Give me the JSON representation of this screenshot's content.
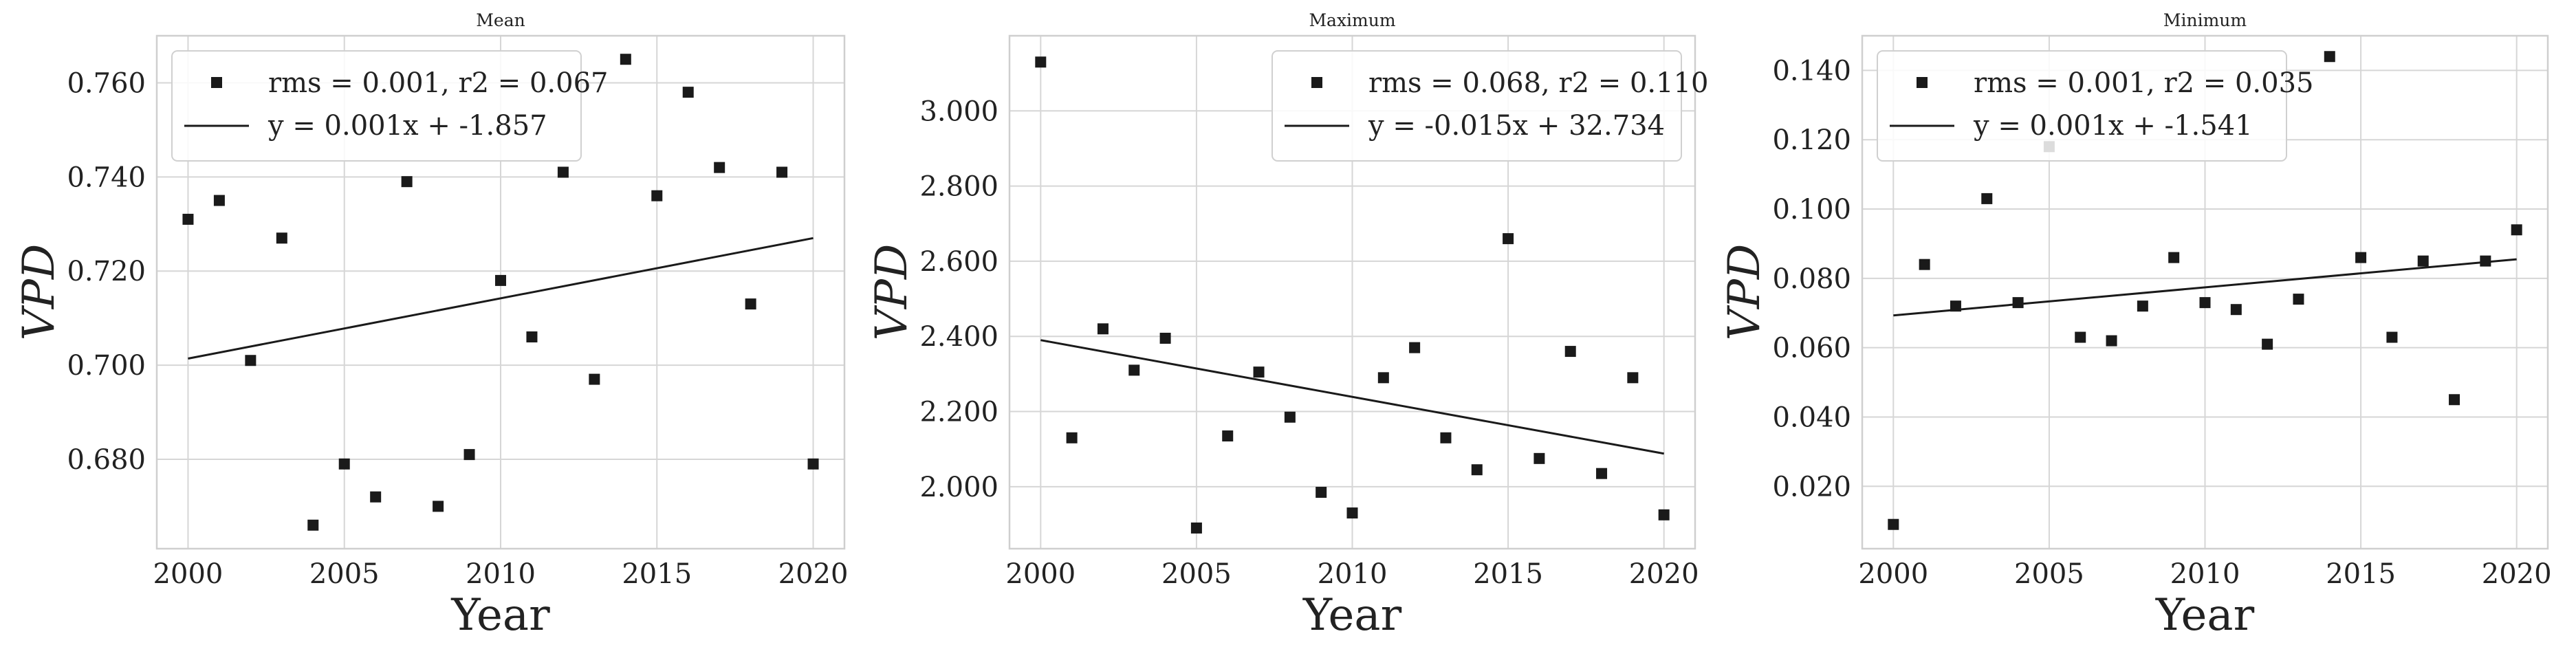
{
  "chart_data": [
    {
      "type": "scatter",
      "title": "Mean",
      "xlabel": "Year",
      "ylabel": "VPD",
      "x": [
        2000,
        2001,
        2002,
        2003,
        2004,
        2005,
        2006,
        2007,
        2008,
        2009,
        2010,
        2011,
        2012,
        2013,
        2014,
        2015,
        2016,
        2017,
        2018,
        2019,
        2020
      ],
      "y": [
        0.731,
        0.735,
        0.701,
        0.727,
        0.666,
        0.679,
        0.672,
        0.739,
        0.67,
        0.681,
        0.718,
        0.706,
        0.741,
        0.697,
        0.765,
        0.736,
        0.758,
        0.742,
        0.713,
        0.741,
        0.679
      ],
      "fit": {
        "x": [
          2000,
          2020
        ],
        "y": [
          0.7014,
          0.727
        ]
      },
      "xlim": [
        1999,
        2021
      ],
      "ylim": [
        0.661,
        0.77
      ],
      "xticks": [
        2000,
        2005,
        2010,
        2015,
        2020
      ],
      "yticks": [
        0.68,
        0.7,
        0.72,
        0.74,
        0.76
      ],
      "ytick_labels": [
        "0.680",
        "0.700",
        "0.720",
        "0.740",
        "0.760"
      ],
      "legend": {
        "position": "top-left",
        "scatter_label": "rms = 0.001, r2 = 0.067",
        "line_label": "y = 0.001x + -1.857"
      },
      "grid": true
    },
    {
      "type": "scatter",
      "title": "Maximum",
      "xlabel": "Year",
      "ylabel": "VPD",
      "x": [
        2000,
        2001,
        2002,
        2003,
        2004,
        2005,
        2006,
        2007,
        2008,
        2009,
        2010,
        2011,
        2012,
        2013,
        2014,
        2015,
        2016,
        2017,
        2018,
        2019,
        2020
      ],
      "y": [
        3.13,
        2.13,
        2.42,
        2.31,
        2.395,
        1.89,
        2.135,
        2.305,
        2.185,
        1.985,
        1.93,
        2.29,
        2.37,
        2.13,
        2.045,
        2.66,
        2.075,
        2.36,
        2.035,
        2.29,
        1.925
      ],
      "fit": {
        "x": [
          2000,
          2020
        ],
        "y": [
          2.39,
          2.088
        ]
      },
      "xlim": [
        1999,
        2021
      ],
      "ylim": [
        1.835,
        3.2
      ],
      "xticks": [
        2000,
        2005,
        2010,
        2015,
        2020
      ],
      "yticks": [
        2.0,
        2.2,
        2.4,
        2.6,
        2.8,
        3.0
      ],
      "ytick_labels": [
        "2.000",
        "2.200",
        "2.400",
        "2.600",
        "2.800",
        "3.000"
      ],
      "legend": {
        "position": "top-right",
        "scatter_label": "rms = 0.068, r2 = 0.110",
        "line_label": "y = -0.015x + 32.734"
      },
      "grid": true
    },
    {
      "type": "scatter",
      "title": "Minimum",
      "xlabel": "Year",
      "ylabel": "VPD",
      "x": [
        2000,
        2001,
        2002,
        2003,
        2004,
        2005,
        2006,
        2007,
        2008,
        2009,
        2010,
        2011,
        2012,
        2013,
        2014,
        2015,
        2016,
        2017,
        2018,
        2019,
        2020
      ],
      "y": [
        0.009,
        0.084,
        0.072,
        0.103,
        0.073,
        0.118,
        0.063,
        0.062,
        0.072,
        0.086,
        0.073,
        0.071,
        0.061,
        0.074,
        0.144,
        0.086,
        0.063,
        0.085,
        0.045,
        0.085,
        0.094
      ],
      "fit": {
        "x": [
          2000,
          2020
        ],
        "y": [
          0.0693,
          0.0855
        ]
      },
      "xlim": [
        1999,
        2021
      ],
      "ylim": [
        0.002,
        0.15
      ],
      "xticks": [
        2000,
        2005,
        2010,
        2015,
        2020
      ],
      "yticks": [
        0.02,
        0.04,
        0.06,
        0.08,
        0.1,
        0.12,
        0.14
      ],
      "ytick_labels": [
        "0.020",
        "0.040",
        "0.060",
        "0.080",
        "0.100",
        "0.120",
        "0.140"
      ],
      "legend": {
        "position": "top-left",
        "scatter_label": "rms = 0.001, r2 = 0.035",
        "line_label": "y = 0.001x + -1.541"
      },
      "grid": true
    }
  ],
  "colors": {
    "marker": "#1a1a1a",
    "fit_line": "#1a1a1a",
    "grid": "#d6d6d6"
  }
}
